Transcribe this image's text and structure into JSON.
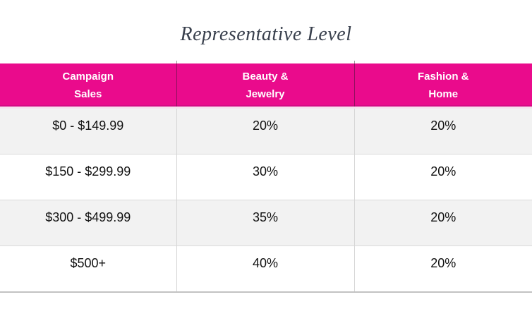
{
  "title": "Representative Level",
  "colors": {
    "brand_pink": "#ea0b8c",
    "header_text": "#ffffff",
    "row_alt_background": "#f2f2f2",
    "row_background": "#ffffff",
    "body_text": "#111111",
    "divider_gray": "#d6d6d6",
    "title_text": "#39404d"
  },
  "table": {
    "headers": [
      "Campaign\nSales",
      "Beauty &\nJewelry",
      "Fashion &\nHome"
    ],
    "rows": [
      [
        "$0 - $149.99",
        "20%",
        "20%"
      ],
      [
        "$150 - $299.99",
        "30%",
        "20%"
      ],
      [
        "$300 - $499.99",
        "35%",
        "20%"
      ],
      [
        "$500+",
        "40%",
        "20%"
      ]
    ]
  },
  "chart_data": {
    "type": "table",
    "title": "Representative Level",
    "columns": [
      "Campaign Sales",
      "Beauty & Jewelry",
      "Fashion & Home"
    ],
    "rows": [
      [
        "$0 - $149.99",
        "20%",
        "20%"
      ],
      [
        "$150 - $299.99",
        "30%",
        "20%"
      ],
      [
        "$300 - $499.99",
        "35%",
        "20%"
      ],
      [
        "$500+",
        "40%",
        "20%"
      ]
    ]
  }
}
